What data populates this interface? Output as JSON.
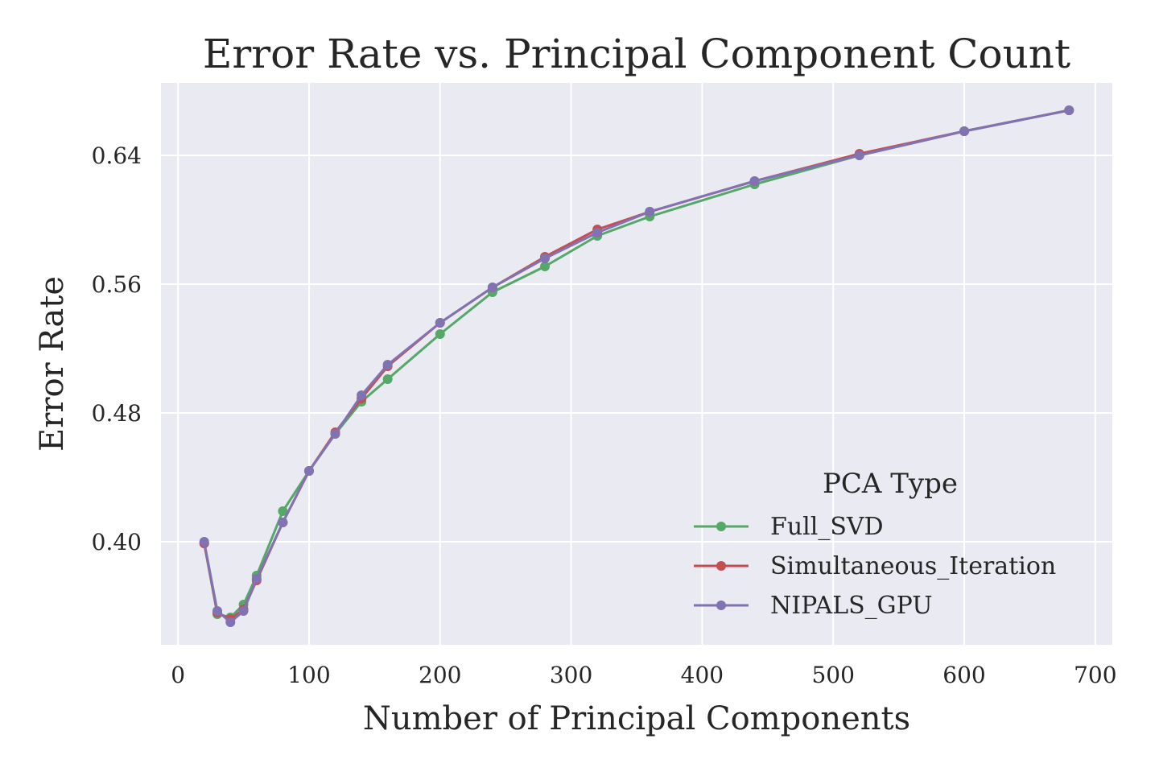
{
  "chart_data": {
    "type": "line",
    "title": "Error Rate vs. Principal Component Count",
    "xlabel": "Number of Principal Components",
    "ylabel": "Error Rate",
    "xlim": [
      -13,
      713
    ],
    "ylim": [
      0.336,
      0.685
    ],
    "xticks": [
      0,
      100,
      200,
      300,
      400,
      500,
      600,
      700
    ],
    "yticks": [
      0.4,
      0.48,
      0.56,
      0.64
    ],
    "ytick_labels": [
      "0.40",
      "0.48",
      "0.56",
      "0.64"
    ],
    "grid": true,
    "background": "#eaeaf2",
    "legend": {
      "title": "PCA Type",
      "position": "lower-right"
    },
    "x": [
      20,
      30,
      40,
      50,
      60,
      80,
      100,
      120,
      140,
      160,
      200,
      240,
      280,
      320,
      360,
      440,
      520,
      600,
      680
    ],
    "series": [
      {
        "name": "Full_SVD",
        "color": "#55a868",
        "values": [
          0.399,
          0.355,
          0.353,
          0.361,
          0.379,
          0.419,
          0.444,
          0.467,
          0.487,
          0.501,
          0.529,
          0.555,
          0.571,
          0.59,
          0.602,
          0.622,
          0.64,
          0.655,
          0.668
        ]
      },
      {
        "name": "Simultaneous_Iteration",
        "color": "#c44e52",
        "values": [
          0.399,
          0.356,
          0.352,
          0.358,
          0.376,
          0.412,
          0.444,
          0.468,
          0.489,
          0.509,
          0.536,
          0.558,
          0.577,
          0.594,
          0.605,
          0.624,
          0.641,
          0.655,
          0.668
        ]
      },
      {
        "name": "NIPALS_GPU",
        "color": "#8172b2",
        "values": [
          0.4,
          0.357,
          0.35,
          0.357,
          0.377,
          0.412,
          0.444,
          0.467,
          0.491,
          0.51,
          0.536,
          0.558,
          0.576,
          0.592,
          0.605,
          0.624,
          0.64,
          0.655,
          0.668
        ]
      }
    ]
  }
}
